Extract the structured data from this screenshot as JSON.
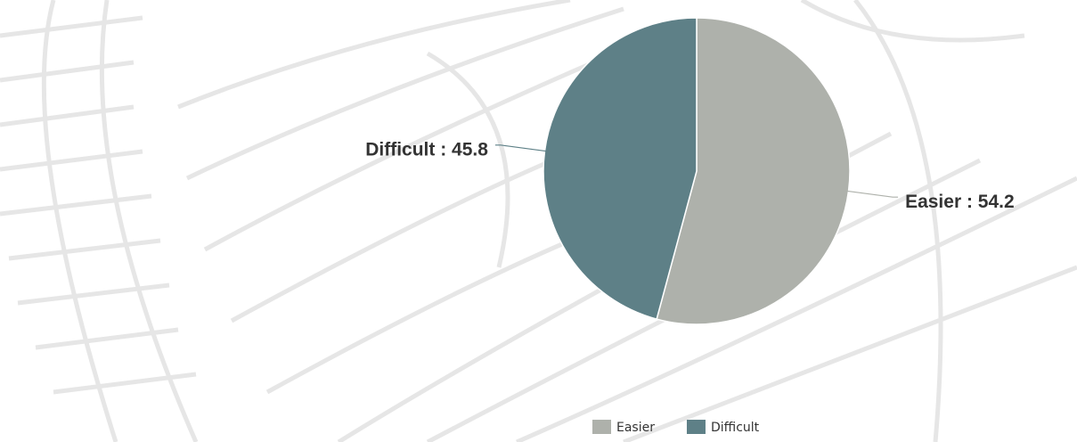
{
  "chart_data": {
    "type": "pie",
    "categories": [
      "Easier",
      "Difficult"
    ],
    "values": [
      54.2,
      45.8
    ],
    "value_labels": [
      "Easier : 54.2",
      "Difficult : 45.8"
    ],
    "colors": [
      "#aeb1ab",
      "#5e8087"
    ],
    "legend": "bottom"
  }
}
